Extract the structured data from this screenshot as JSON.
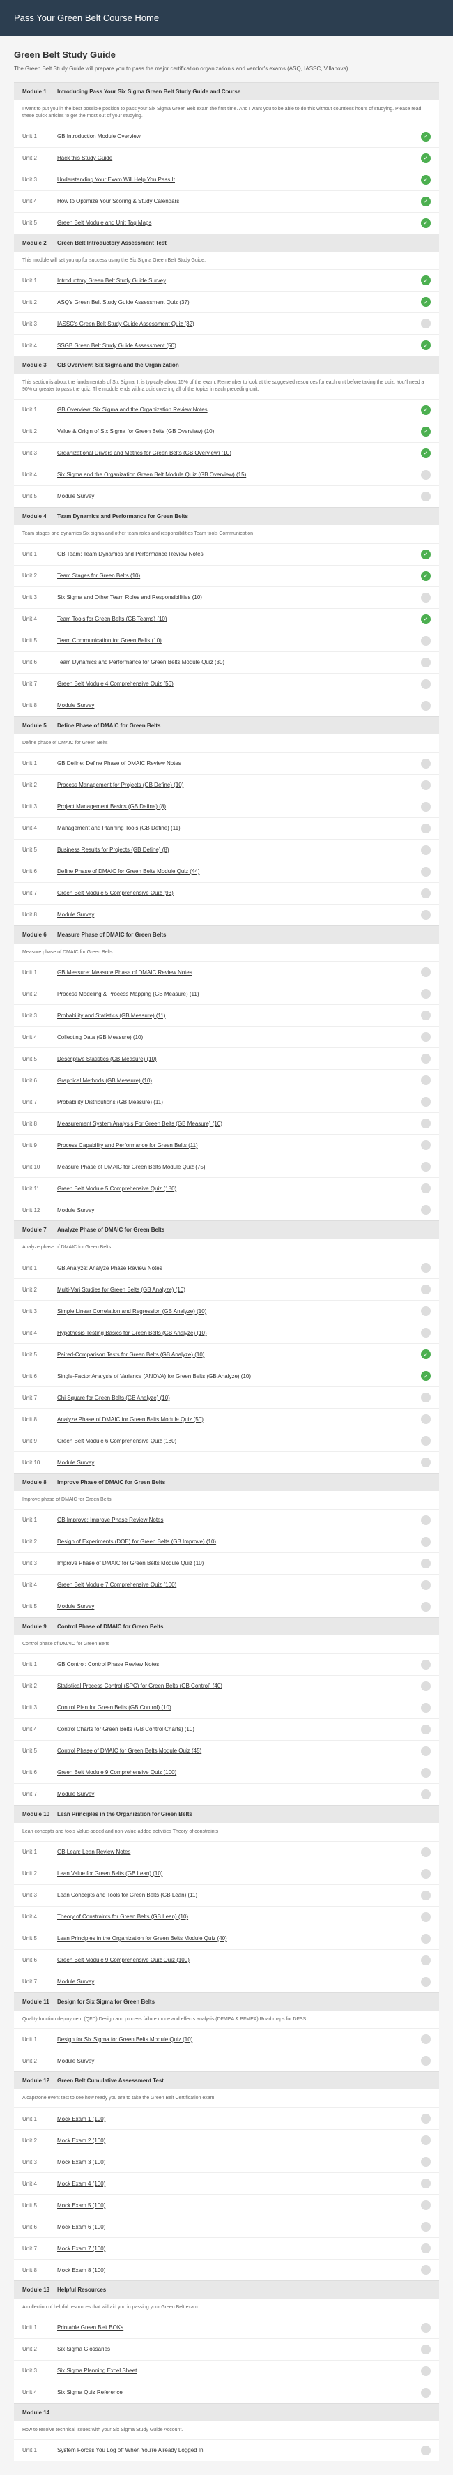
{
  "header": {
    "title": "Pass Your Green Belt Course Home"
  },
  "guide": {
    "title": "Green Belt Study Guide",
    "subtitle": "The Green Belt Study Guide will prepare you to pass the major certification organization's and vendor's exams (ASQ, IASSC, Villanova)."
  },
  "modules": [
    {
      "num": "Module 1",
      "title": "Introducing Pass Your Six Sigma Green Belt Study Guide and Course",
      "desc": "I want to put you in the best possible position to pass your Six Sigma Green Belt exam the first time. And I want you to be able to do this without countless hours of studying. Please read these quick articles to get the most out of your studying.",
      "units": [
        {
          "num": "Unit 1",
          "title": "GB Introduction Module Overview",
          "complete": true
        },
        {
          "num": "Unit 2",
          "title": "Hack this Study Guide",
          "complete": true
        },
        {
          "num": "Unit 3",
          "title": "Understanding Your Exam Will Help You Pass It",
          "complete": true
        },
        {
          "num": "Unit 4",
          "title": "How to Optimize Your Scoring & Study Calendars",
          "complete": true
        },
        {
          "num": "Unit 5",
          "title": "Green Belt Module and Unit Tag Maps",
          "complete": true
        }
      ]
    },
    {
      "num": "Module 2",
      "title": "Green Belt Introductory Assessment Test",
      "desc": "This module will set you up for success using the Six Sigma Green Belt Study Guide.",
      "units": [
        {
          "num": "Unit 1",
          "title": "Introductory Green Belt Study Guide Survey",
          "complete": true
        },
        {
          "num": "Unit 2",
          "title": "ASQ's Green Belt Study Guide Assessment Quiz (37)",
          "complete": true
        },
        {
          "num": "Unit 3",
          "title": "IASSC's Green Belt Study Guide Assessment Quiz (32)",
          "complete": false
        },
        {
          "num": "Unit 4",
          "title": "SSGB Green Belt Study Guide Assessment (50)",
          "complete": true
        }
      ]
    },
    {
      "num": "Module 3",
      "title": "GB Overview: Six Sigma and the Organization",
      "desc": "This section is about the fundamentals of Six Sigma. It is typically about 15% of the exam. Remember to look at the suggested resources for each unit before taking the quiz. You'll need a 90% or greater to pass the quiz. The module ends with a quiz covering all of the topics in each preceding unit.",
      "units": [
        {
          "num": "Unit 1",
          "title": "GB Overview: Six Sigma and the Organization Review Notes",
          "complete": true
        },
        {
          "num": "Unit 2",
          "title": "Value & Origin of Six Sigma for Green Belts (GB Overview) (10)",
          "complete": true
        },
        {
          "num": "Unit 3",
          "title": "Organizational Drivers and Metrics for Green Belts (GB Overview) (10)",
          "complete": true
        },
        {
          "num": "Unit 4",
          "title": "Six Sigma and the Organization Green Belt Module Quiz (GB Overview) (15)",
          "complete": false
        },
        {
          "num": "Unit 5",
          "title": "Module Survey",
          "complete": false
        }
      ]
    },
    {
      "num": "Module 4",
      "title": "Team Dynamics and Performance for Green Belts",
      "desc": "Team stages and dynamics Six sigma and other team roles and responsibilities Team tools Communication",
      "units": [
        {
          "num": "Unit 1",
          "title": "GB Team: Team Dynamics and Performance Review Notes",
          "complete": true
        },
        {
          "num": "Unit 2",
          "title": "Team Stages for Green Belts (10)",
          "complete": true
        },
        {
          "num": "Unit 3",
          "title": "Six Sigma and Other Team Roles and Responsibilities (10)",
          "complete": false
        },
        {
          "num": "Unit 4",
          "title": "Team Tools for Green Belts (GB Teams) (10)",
          "complete": true
        },
        {
          "num": "Unit 5",
          "title": "Team Communication for Green Belts (10)",
          "complete": false
        },
        {
          "num": "Unit 6",
          "title": "Team Dynamics and Performance for Green Belts Module Quiz (30)",
          "complete": false
        },
        {
          "num": "Unit 7",
          "title": "Green Belt Module 4 Comprehensive Quiz (56)",
          "complete": false
        },
        {
          "num": "Unit 8",
          "title": "Module Survey",
          "complete": false
        }
      ]
    },
    {
      "num": "Module 5",
      "title": "Define Phase of DMAIC for Green Belts",
      "desc": "Define phase of DMAIC for Green Belts",
      "units": [
        {
          "num": "Unit 1",
          "title": "GB Define: Define Phase of DMAIC Review Notes",
          "complete": false
        },
        {
          "num": "Unit 2",
          "title": "Process Management for Projects (GB Define) (10)",
          "complete": false
        },
        {
          "num": "Unit 3",
          "title": "Project Management Basics (GB Define) (8)",
          "complete": false
        },
        {
          "num": "Unit 4",
          "title": "Management and Planning Tools (GB Define) (11)",
          "complete": false
        },
        {
          "num": "Unit 5",
          "title": "Business Results for Projects (GB Define) (8)",
          "complete": false
        },
        {
          "num": "Unit 6",
          "title": "Define Phase of DMAIC for Green Belts Module Quiz (44)",
          "complete": false
        },
        {
          "num": "Unit 7",
          "title": "Green Belt Module 5 Comprehensive Quiz (93)",
          "complete": false
        },
        {
          "num": "Unit 8",
          "title": "Module Survey",
          "complete": false
        }
      ]
    },
    {
      "num": "Module 6",
      "title": "Measure Phase of DMAIC for Green Belts",
      "desc": "Measure phase of DMAIC for Green Belts",
      "units": [
        {
          "num": "Unit 1",
          "title": "GB Measure: Measure Phase of DMAIC Review Notes",
          "complete": false
        },
        {
          "num": "Unit 2",
          "title": "Process Modeling & Process Mapping (GB Measure) (11)",
          "complete": false
        },
        {
          "num": "Unit 3",
          "title": "Probability and Statistics (GB Measure) (11)",
          "complete": false
        },
        {
          "num": "Unit 4",
          "title": "Collecting Data (GB Measure) (10)",
          "complete": false
        },
        {
          "num": "Unit 5",
          "title": "Descriptive Statistics (GB Measure) (10)",
          "complete": false
        },
        {
          "num": "Unit 6",
          "title": "Graphical Methods (GB Measure) (10)",
          "complete": false
        },
        {
          "num": "Unit 7",
          "title": "Probability Distributions (GB Measure) (11)",
          "complete": false
        },
        {
          "num": "Unit 8",
          "title": "Measurement System Analysis For Green Belts (GB Measure) (10)",
          "complete": false
        },
        {
          "num": "Unit 9",
          "title": "Process Capability and Performance for Green Belts (11)",
          "complete": false
        },
        {
          "num": "Unit 10",
          "title": "Measure Phase of DMAIC for Green Belts Module Quiz (75)",
          "complete": false
        },
        {
          "num": "Unit 11",
          "title": "Green Belt Module 5 Comprehensive Quiz (180)",
          "complete": false
        },
        {
          "num": "Unit 12",
          "title": "Module Survey",
          "complete": false
        }
      ]
    },
    {
      "num": "Module 7",
      "title": "Analyze Phase of DMAIC for Green Belts",
      "desc": "Analyze phase of DMAIC for Green Belts",
      "units": [
        {
          "num": "Unit 1",
          "title": "GB Analyze: Analyze Phase Review Notes",
          "complete": false
        },
        {
          "num": "Unit 2",
          "title": "Multi-Vari Studies for Green Belts (GB Analyze) (10)",
          "complete": false
        },
        {
          "num": "Unit 3",
          "title": "Simple Linear Correlation and Regression (GB Analyze) (10)",
          "complete": false
        },
        {
          "num": "Unit 4",
          "title": "Hypothesis Testing Basics for Green Belts (GB Analyze) (10)",
          "complete": false
        },
        {
          "num": "Unit 5",
          "title": "Paired-Comparison Tests for Green Belts (GB Analyze) (10)",
          "complete": true
        },
        {
          "num": "Unit 6",
          "title": "Single-Factor Analysis of Variance (ANOVA) for Green Belts (GB Analyze) (10)",
          "complete": true
        },
        {
          "num": "Unit 7",
          "title": "Chi Square for Green Belts (GB Analyze) (10)",
          "complete": false
        },
        {
          "num": "Unit 8",
          "title": "Analyze Phase of DMAIC for Green Belts Module Quiz (50)",
          "complete": false
        },
        {
          "num": "Unit 9",
          "title": "Green Belt Module 6 Comprehensive Quiz (180)",
          "complete": false
        },
        {
          "num": "Unit 10",
          "title": "Module Survey",
          "complete": false
        }
      ]
    },
    {
      "num": "Module 8",
      "title": "Improve Phase of DMAIC for Green Belts",
      "desc": "Improve phase of DMAIC for Green Belts",
      "units": [
        {
          "num": "Unit 1",
          "title": "GB Improve: Improve Phase Review Notes",
          "complete": false
        },
        {
          "num": "Unit 2",
          "title": "Design of Experiments (DOE) for Green Belts (GB Improve) (10)",
          "complete": false
        },
        {
          "num": "Unit 3",
          "title": "Improve Phase of DMAIC for Green Belts Module Quiz (10)",
          "complete": false
        },
        {
          "num": "Unit 4",
          "title": "Green Belt Module 7 Comprehensive Quiz (100)",
          "complete": false
        },
        {
          "num": "Unit 5",
          "title": "Module Survey",
          "complete": false
        }
      ]
    },
    {
      "num": "Module 9",
      "title": "Control Phase of DMAIC for Green Belts",
      "desc": "Control phase of DMAIC for Green Belts",
      "units": [
        {
          "num": "Unit 1",
          "title": "GB Control: Control Phase Review Notes",
          "complete": false
        },
        {
          "num": "Unit 2",
          "title": "Statistical Process Control (SPC) for Green Belts (GB Control) (40)",
          "complete": false
        },
        {
          "num": "Unit 3",
          "title": "Control Plan for Green Belts (GB Control) (10)",
          "complete": false
        },
        {
          "num": "Unit 4",
          "title": "Control Charts for Green Belts (GB Control Charts) (10)",
          "complete": false
        },
        {
          "num": "Unit 5",
          "title": "Control Phase of DMAIC for Green Belts Module Quiz (45)",
          "complete": false
        },
        {
          "num": "Unit 6",
          "title": "Green Belt Module 9 Comprehensive Quiz (100)",
          "complete": false
        },
        {
          "num": "Unit 7",
          "title": "Module Survey",
          "complete": false
        }
      ]
    },
    {
      "num": "Module 10",
      "title": "Lean Principles in the Organization for Green Belts",
      "desc": "Lean concepts and tools Value-added and non-value-added activities Theory of constraints",
      "units": [
        {
          "num": "Unit 1",
          "title": "GB Lean: Lean Review Notes",
          "complete": false
        },
        {
          "num": "Unit 2",
          "title": "Lean Value for Green Belts (GB Lean) (10)",
          "complete": false
        },
        {
          "num": "Unit 3",
          "title": "Lean Concepts and Tools for Green Belts (GB Lean) (11)",
          "complete": false
        },
        {
          "num": "Unit 4",
          "title": "Theory of Constraints for Green Belts (GB Lean) (10)",
          "complete": false
        },
        {
          "num": "Unit 5",
          "title": "Lean Principles in the Organization for Green Belts Module Quiz (40)",
          "complete": false
        },
        {
          "num": "Unit 6",
          "title": "Green Belt Module 9 Comprehensive Quiz Quiz (100)",
          "complete": false
        },
        {
          "num": "Unit 7",
          "title": "Module Survey",
          "complete": false
        }
      ]
    },
    {
      "num": "Module 11",
      "title": "Design for Six Sigma for Green Belts",
      "desc": "Quality function deployment (QFD) Design and process failure mode and effects analysis (DFMEA & PFMEA) Road maps for DFSS",
      "units": [
        {
          "num": "Unit 1",
          "title": "Design for Six Sigma for Green Belts Module Quiz (10)",
          "complete": false
        },
        {
          "num": "Unit 2",
          "title": "Module Survey",
          "complete": false
        }
      ]
    },
    {
      "num": "Module 12",
      "title": "Green Belt Cumulative Assessment Test",
      "desc": "A capstone event test to see how ready you are to take the Green Belt Certification exam.",
      "units": [
        {
          "num": "Unit 1",
          "title": "Mock Exam 1 (100)",
          "complete": false
        },
        {
          "num": "Unit 2",
          "title": "Mock Exam 2 (100)",
          "complete": false
        },
        {
          "num": "Unit 3",
          "title": "Mock Exam 3 (100)",
          "complete": false
        },
        {
          "num": "Unit 4",
          "title": "Mock Exam 4 (100)",
          "complete": false
        },
        {
          "num": "Unit 5",
          "title": "Mock Exam 5 (100)",
          "complete": false
        },
        {
          "num": "Unit 6",
          "title": "Mock Exam 6 (100)",
          "complete": false
        },
        {
          "num": "Unit 7",
          "title": "Mock Exam 7 (100)",
          "complete": false
        },
        {
          "num": "Unit 8",
          "title": "Mock Exam 8 (100)",
          "complete": false
        }
      ]
    },
    {
      "num": "Module 13",
      "title": "Helpful Resources",
      "desc": "A collection of helpful resources that will aid you in passing your Green Belt exam.",
      "units": [
        {
          "num": "Unit 1",
          "title": "Printable Green Belt BOKs",
          "complete": false
        },
        {
          "num": "Unit 2",
          "title": "Six Sigma Glossaries",
          "complete": false
        },
        {
          "num": "Unit 3",
          "title": "Six Sigma Planning Excel Sheet",
          "complete": false
        },
        {
          "num": "Unit 4",
          "title": "Six Sigma Quiz Reference",
          "complete": false
        }
      ]
    },
    {
      "num": "Module 14",
      "title": "",
      "desc": "How to resolve technical issues with your Six Sigma Study Guide Account.",
      "units": [
        {
          "num": "Unit 1",
          "title": "System Forces You Log off When You're Already Logged In",
          "complete": false
        }
      ]
    }
  ]
}
